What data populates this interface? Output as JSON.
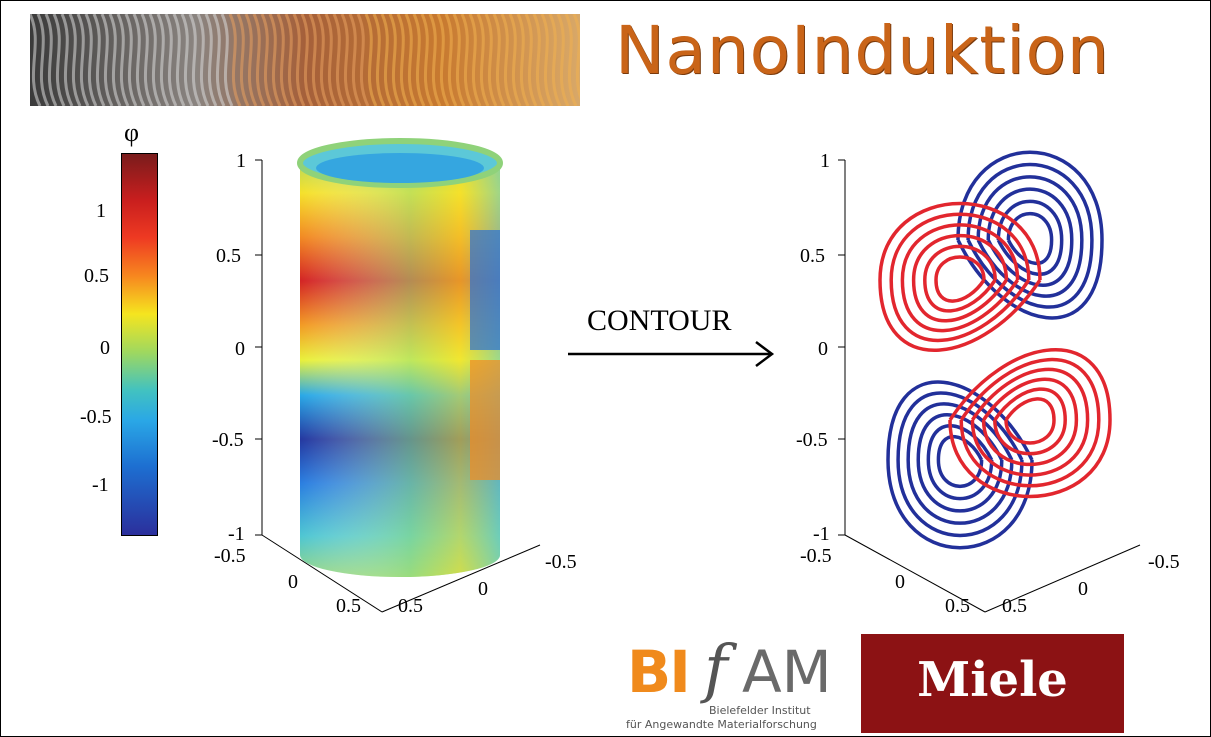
{
  "title": "NanoInduktion",
  "colorbar": {
    "label": "φ",
    "ticks": [
      "1",
      "0.5",
      "0",
      "-0.5",
      "-1"
    ],
    "colors": [
      "#7a1c1c",
      "#c81e1e",
      "#ee3a22",
      "#f7871f",
      "#f5e51f",
      "#9fd85f",
      "#42c2c0",
      "#2aa7e6",
      "#1d6fd1",
      "#2b2f9c"
    ]
  },
  "left_plot": {
    "z_ticks": [
      "1",
      "0.5",
      "0",
      "-0.5",
      "-1"
    ],
    "x_ticks": [
      "-0.5",
      "0",
      "0.5"
    ],
    "y_ticks": [
      "0.5",
      "0",
      "-0.5"
    ]
  },
  "arrow_label": "CONTOUR",
  "right_plot": {
    "z_ticks": [
      "1",
      "0.5",
      "0",
      "-0.5",
      "-1"
    ],
    "x_ticks": [
      "-0.5",
      "0",
      "0.5"
    ],
    "y_ticks": [
      "0.5",
      "0",
      "-0.5"
    ],
    "colors": {
      "negative": "#22309a",
      "positive": "#e2262e"
    }
  },
  "logos": {
    "bifam": {
      "bi": "BI",
      "f": "f",
      "am": "AM",
      "line1": "Bielefelder Institut",
      "line2": "für Angewandte Materialforschung"
    },
    "miele": "Miele"
  }
}
